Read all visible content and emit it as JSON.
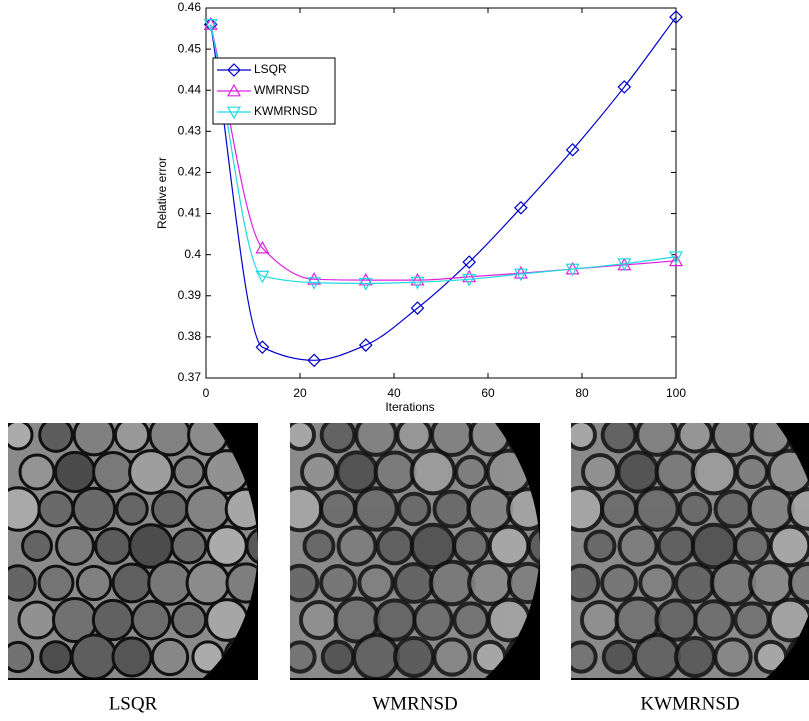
{
  "chart_data": {
    "type": "line",
    "x_label": "Iterations",
    "y_label": "Relative error",
    "x": [
      1,
      12,
      23,
      34,
      45,
      56,
      67,
      78,
      89,
      100
    ],
    "series": [
      {
        "name": "LSQR",
        "color": "#0000cc",
        "marker": "diamond",
        "values": [
          0.456,
          0.3775,
          0.3743,
          0.378,
          0.387,
          0.3982,
          0.4114,
          0.4255,
          0.4408,
          0.4578
        ]
      },
      {
        "name": "WMRNSD",
        "color": "#e020e0",
        "marker": "triangle-up",
        "values": [
          0.456,
          0.4016,
          0.394,
          0.3938,
          0.3938,
          0.3946,
          0.3955,
          0.3965,
          0.3975,
          0.3985
        ]
      },
      {
        "name": "KWMRNSD",
        "color": "#20d8e0",
        "marker": "triangle-down",
        "values": [
          0.456,
          0.3948,
          0.3932,
          0.393,
          0.3933,
          0.394,
          0.3953,
          0.3965,
          0.3978,
          0.3995
        ]
      }
    ],
    "xlim": [
      0,
      100
    ],
    "xticks": [
      0,
      20,
      40,
      60,
      80,
      100
    ],
    "ylim": [
      0.37,
      0.46
    ],
    "yticks": [
      0.37,
      0.38,
      0.39,
      0.4,
      0.41,
      0.42,
      0.43,
      0.44,
      0.45,
      0.46
    ],
    "legend": "upper left"
  },
  "panels": [
    {
      "caption": "LSQR"
    },
    {
      "caption": "WMRNSD"
    },
    {
      "caption": "KWMRNSD"
    }
  ]
}
